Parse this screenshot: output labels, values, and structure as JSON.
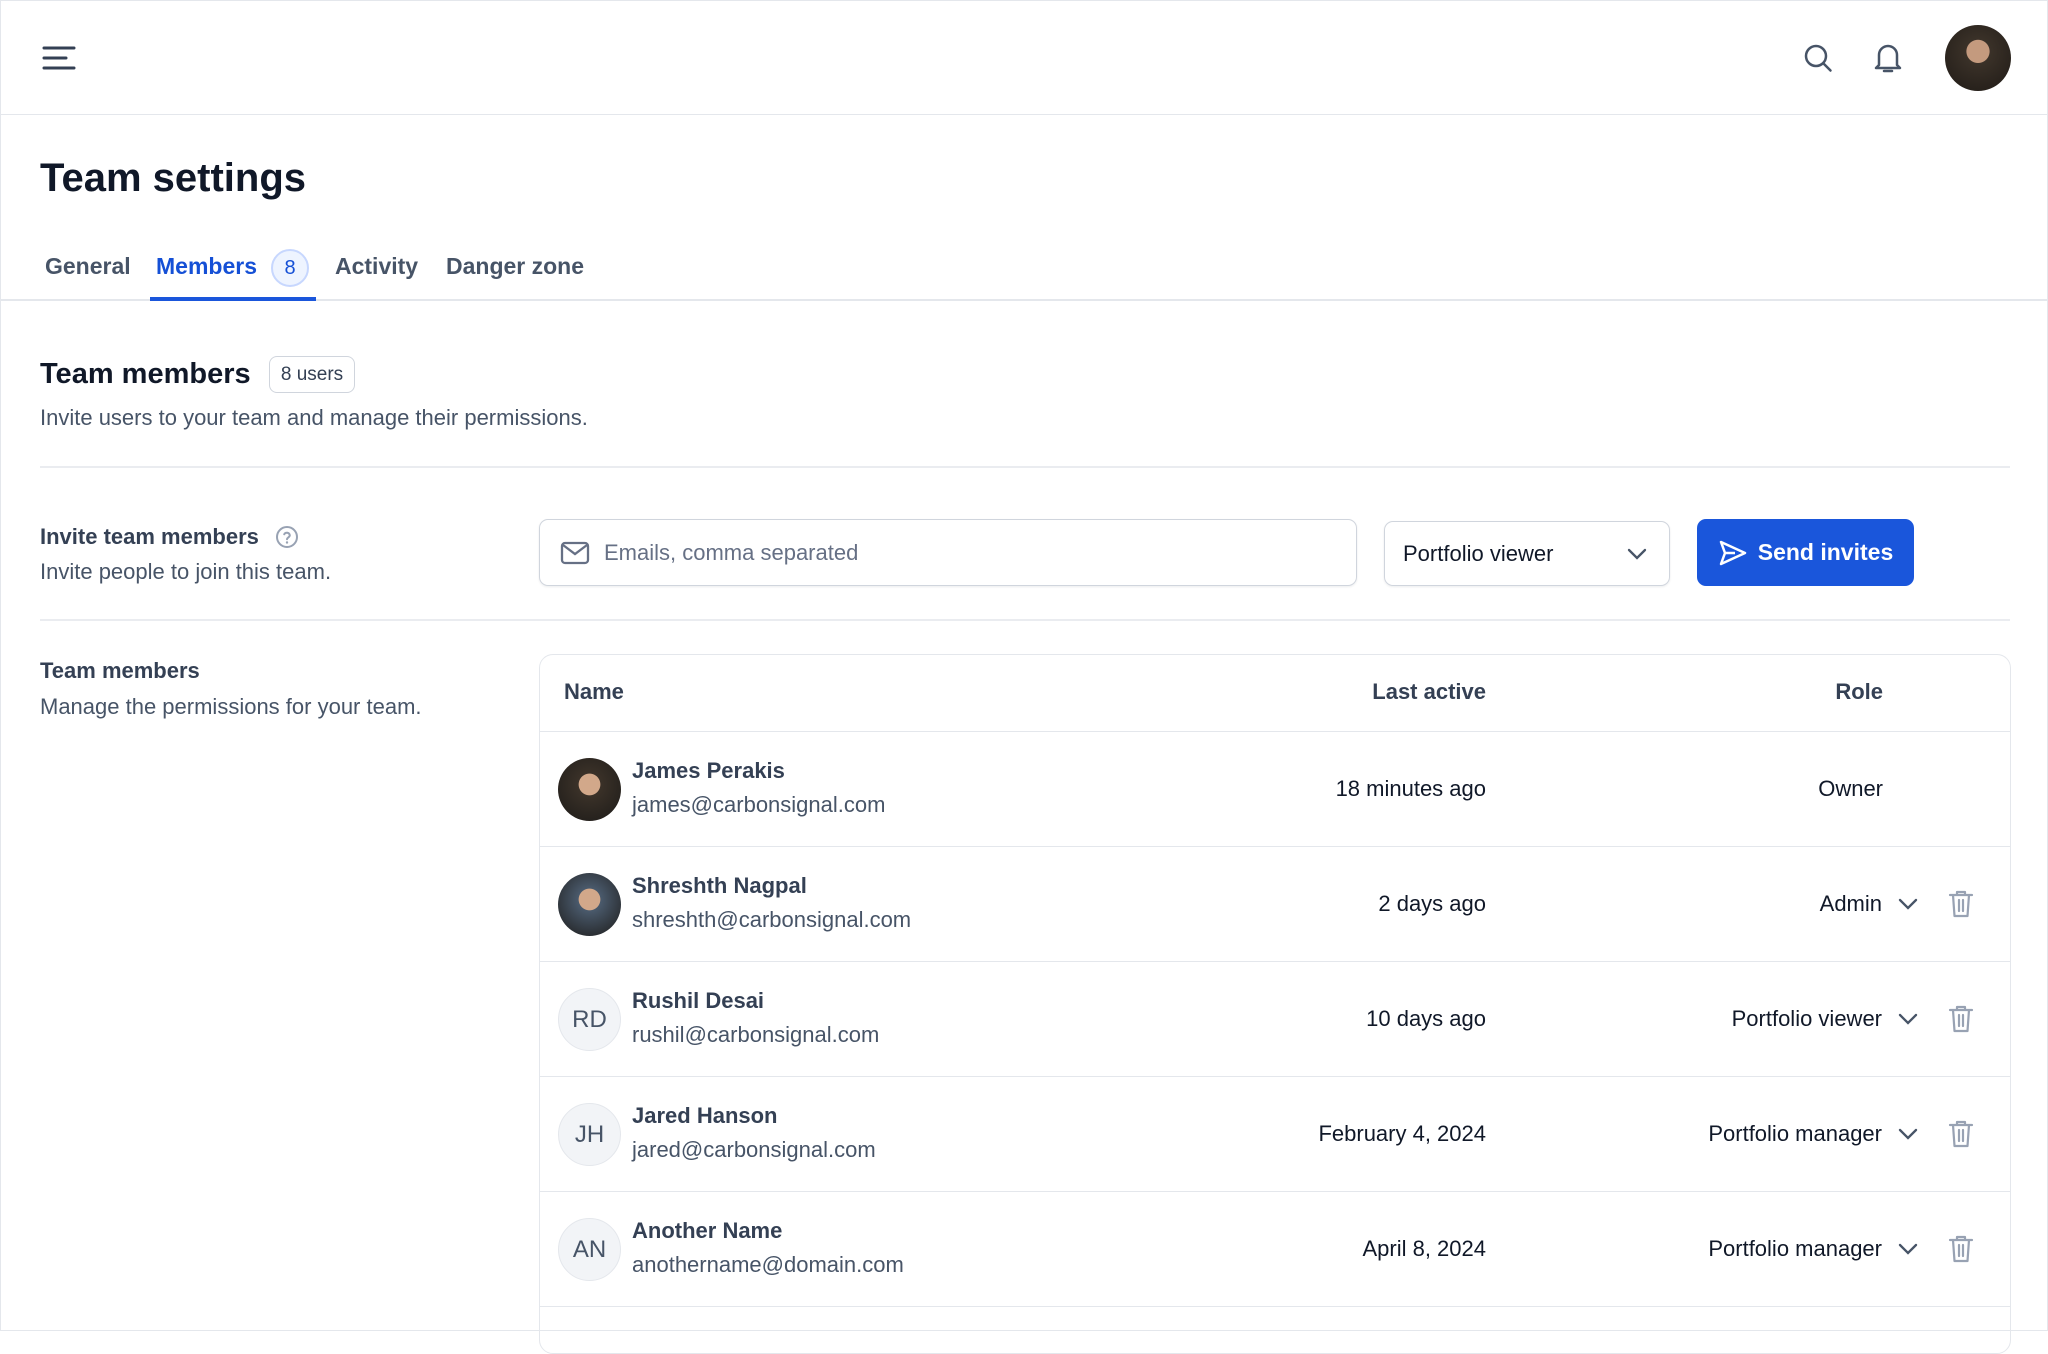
{
  "header": {
    "menu_icon": "menu-icon",
    "search_icon": "search-icon",
    "bell_icon": "bell-icon",
    "avatar": "user-avatar"
  },
  "page": {
    "title": "Team settings"
  },
  "tabs": [
    {
      "label": "General"
    },
    {
      "label": "Members",
      "badge": "8",
      "active": true
    },
    {
      "label": "Activity"
    },
    {
      "label": "Danger zone"
    }
  ],
  "section": {
    "title": "Team members",
    "badge": "8 users",
    "subtitle": "Invite users to your team and manage their permissions."
  },
  "invite": {
    "label": "Invite team members",
    "help_icon": "help-circle-icon",
    "subtitle": "Invite people to join this team.",
    "email_placeholder": "Emails, comma separated",
    "email_value": "",
    "role_select": "Portfolio viewer",
    "button": "Send invites"
  },
  "members": {
    "label": "Team members",
    "subtitle": "Manage the permissions for your team.",
    "columns": [
      "Name",
      "Last active",
      "Role"
    ],
    "rows": [
      {
        "name": "James Perakis",
        "email": "james@carbonsignal.com",
        "last_active": "18 minutes ago",
        "role": "Owner",
        "avatar": "photo",
        "color": "#3a3128"
      },
      {
        "name": "Shreshth Nagpal",
        "email": "shreshth@carbonsignal.com",
        "last_active": "2 days ago",
        "role": "Admin",
        "avatar": "photo",
        "color": "#4a5a6c"
      },
      {
        "name": "Rushil Desai",
        "email": "rushil@carbonsignal.com",
        "last_active": "10 days ago",
        "role": "Portfolio viewer",
        "initials": "RD"
      },
      {
        "name": "Jared Hanson",
        "email": "jared@carbonsignal.com",
        "last_active": "February 4, 2024",
        "role": "Portfolio manager",
        "initials": "JH"
      },
      {
        "name": "Another Name",
        "email": "anothername@domain.com",
        "last_active": "April 8, 2024",
        "role": "Portfolio manager",
        "initials": "AN"
      }
    ]
  },
  "colors": {
    "accent": "#1a56db",
    "border": "#e4e7ec",
    "text": "#101828",
    "muted": "#475467"
  }
}
